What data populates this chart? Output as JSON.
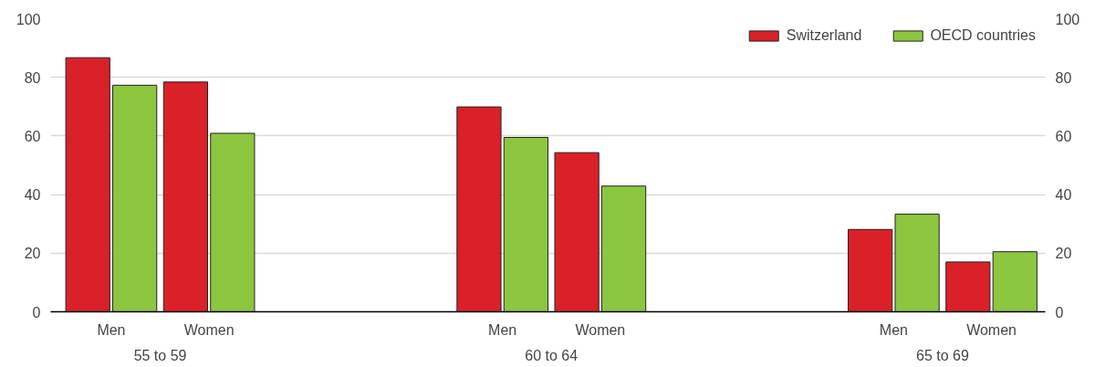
{
  "chart_data": {
    "type": "bar",
    "categories": [
      "Men",
      "Women",
      null,
      null,
      "Men",
      "Women",
      null,
      null,
      "Men",
      "Women"
    ],
    "series": [
      {
        "name": "Switzerland",
        "color": "#da2128",
        "values": [
          86.7,
          78.4,
          null,
          null,
          69.9,
          54.3,
          null,
          null,
          28.1,
          17.0
        ]
      },
      {
        "name": "OECD countries",
        "color": "#8cc63f",
        "values": [
          77.3,
          60.9,
          null,
          null,
          59.5,
          42.9,
          null,
          null,
          33.3,
          20.5
        ]
      }
    ],
    "annotations": [
      "55 to 59",
      "60 to 64",
      "65 to 69"
    ],
    "ylim": [
      0,
      100
    ],
    "yticks": [
      0,
      20,
      40,
      60,
      80,
      100
    ],
    "y2lim": [
      0,
      100
    ],
    "y2ticks": [
      0,
      20,
      40,
      60,
      80,
      100
    ],
    "grid": "y",
    "legend": "top right"
  }
}
